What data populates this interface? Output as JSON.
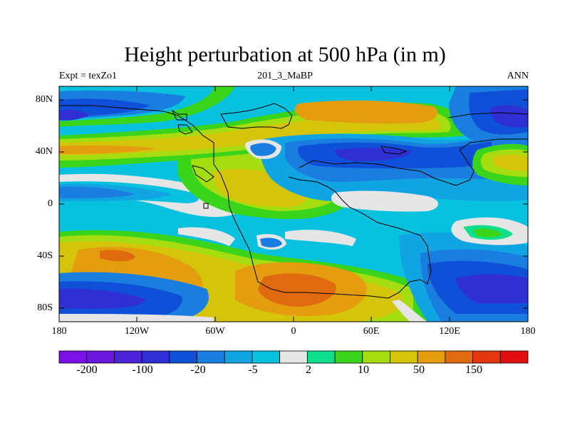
{
  "title": "Height perturbation at 500 hPa (in m)",
  "subtitle_left": "Expt = texZo1",
  "subtitle_center": "201_3_MaBP",
  "subtitle_right": "ANN",
  "lat_ticks": [
    "80N",
    "40N",
    "0",
    "40S",
    "80S"
  ],
  "lon_ticks": [
    "180",
    "120W",
    "60W",
    "0",
    "60E",
    "120E",
    "180"
  ],
  "colorbar": {
    "colors": [
      "#7a12e8",
      "#6a16dd",
      "#4d23d8",
      "#2f2fd3",
      "#0f50d8",
      "#1a7ee0",
      "#11a4e2",
      "#08c1df",
      "#e6e6e6",
      "#0fdf8c",
      "#3ad51a",
      "#a5dd10",
      "#d4c40a",
      "#e49d0f",
      "#e06a10",
      "#e2360f",
      "#e10e12"
    ],
    "labels": [
      "-200",
      "-100",
      "-20",
      "-5",
      "2",
      "10",
      "50",
      "150"
    ]
  },
  "palette": {
    "land_outline": "#000000",
    "background": "#ffffff"
  }
}
